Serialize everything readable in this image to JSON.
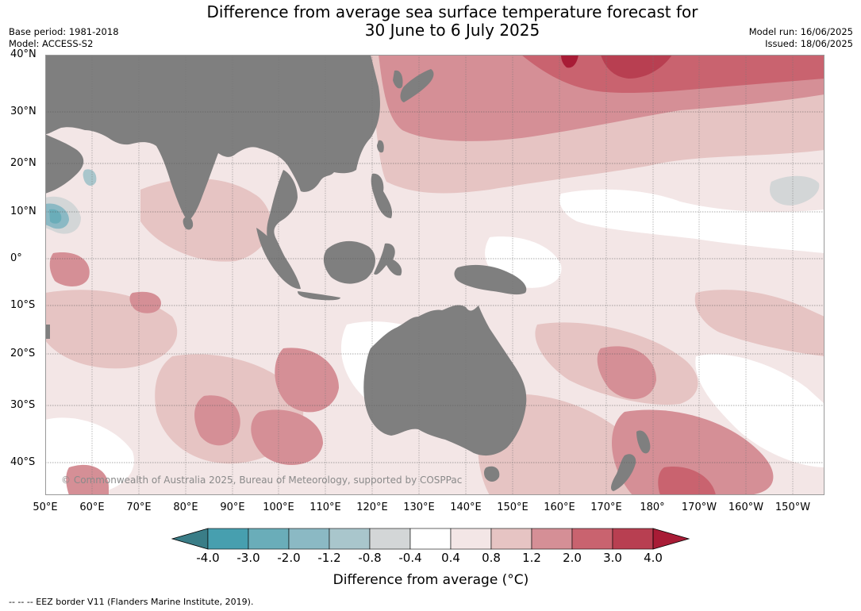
{
  "title_line1": "Difference from average sea surface temperature forecast for",
  "title_line2": "30 June to 6 July 2025",
  "base_period": "Base period: 1981-2018",
  "model": "Model: ACCESS-S2",
  "model_run": "Model run: 16/06/2025",
  "issued": "Issued: 18/06/2025",
  "lat_labels": [
    "40°N",
    "30°N",
    "20°N",
    "10°N",
    "0°",
    "10°S",
    "20°S",
    "30°S",
    "40°S"
  ],
  "lon_labels": [
    "50°E",
    "60°E",
    "70°E",
    "80°E",
    "90°E",
    "100°E",
    "110°E",
    "120°E",
    "130°E",
    "140°E",
    "150°E",
    "160°E",
    "170°E",
    "180°",
    "170°W",
    "160°W",
    "150°W"
  ],
  "copyright": "© Commonwealth of Australia 2025, Bureau of Meteorology, supported by COSPPac",
  "colorbar": {
    "label": "Difference from average (°C)",
    "ticks": [
      "-4.0",
      "-3.0",
      "-2.0",
      "-1.2",
      "-0.8",
      "-0.4",
      "0.4",
      "0.8",
      "1.2",
      "2.0",
      "3.0",
      "4.0"
    ],
    "colors": [
      "#3a7d87",
      "#479faf",
      "#6aadb9",
      "#8bb9c4",
      "#a9c6cc",
      "#d3d6d7",
      "#ffffff",
      "#f3e6e6",
      "#e6c4c3",
      "#d58f96",
      "#c9636f",
      "#b83f51",
      "#a81c36"
    ]
  },
  "map_colors": {
    "land": "#7f7f7f",
    "ocean_base": "#f3e6e6",
    "anomaly_0_4": "#ffffff",
    "anomaly_0_8": "#e6c4c3",
    "anomaly_1_2": "#d58f96",
    "anomaly_2_0": "#c9636f",
    "anomaly_3_0": "#b83f51",
    "cool_neutral": "#d3d6d7",
    "cool_1_2": "#8bb9c4",
    "cool_2_0": "#6aadb9"
  },
  "footnote": "-- -- -- EEZ border V11 (Flanders Marine Institute, 2019)."
}
